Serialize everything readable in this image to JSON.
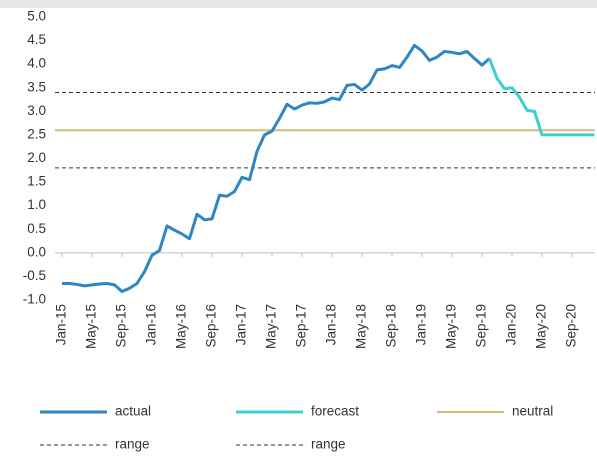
{
  "chart_data": {
    "type": "line",
    "categories": [
      "Jan-15",
      null,
      null,
      null,
      "May-15",
      null,
      null,
      null,
      "Sep-15",
      null,
      null,
      null,
      "Jan-16",
      null,
      null,
      null,
      "May-16",
      null,
      null,
      null,
      "Sep-16",
      null,
      null,
      null,
      "Jan-17",
      null,
      null,
      null,
      "May-17",
      null,
      null,
      null,
      "Sep-17",
      null,
      null,
      null,
      "Jan-18",
      null,
      null,
      null,
      "May-18",
      null,
      null,
      null,
      "Sep-18",
      null,
      null,
      null,
      "Jan-19",
      null,
      null,
      null,
      "May-19",
      null,
      null,
      null,
      "Sep-19",
      null,
      null,
      null,
      "Jan-20",
      null,
      null,
      null,
      "May-20",
      null,
      null,
      null,
      "Sep-20",
      null,
      null,
      null
    ],
    "series": [
      {
        "name": "actual",
        "color": "#2f86c4",
        "values": [
          -0.65,
          -0.65,
          -0.67,
          -0.7,
          -0.68,
          -0.66,
          -0.65,
          -0.68,
          -0.82,
          -0.75,
          -0.65,
          -0.4,
          -0.05,
          0.05,
          0.57,
          0.48,
          0.4,
          0.3,
          0.82,
          0.7,
          0.72,
          1.22,
          1.2,
          1.3,
          1.6,
          1.55,
          2.15,
          2.5,
          2.58,
          2.85,
          3.15,
          3.05,
          3.13,
          3.18,
          3.17,
          3.2,
          3.28,
          3.25,
          3.55,
          3.57,
          3.45,
          3.58,
          3.88,
          3.9,
          3.97,
          3.93,
          4.15,
          4.4,
          4.28,
          4.08,
          4.15,
          4.27,
          4.25,
          4.22,
          4.27,
          4.12,
          3.98,
          4.12,
          null,
          null,
          null,
          null,
          null,
          null,
          null,
          null,
          null,
          null,
          null,
          null,
          null,
          null
        ]
      },
      {
        "name": "forecast",
        "color": "#3dcfcf",
        "values": [
          null,
          null,
          null,
          null,
          null,
          null,
          null,
          null,
          null,
          null,
          null,
          null,
          null,
          null,
          null,
          null,
          null,
          null,
          null,
          null,
          null,
          null,
          null,
          null,
          null,
          null,
          null,
          null,
          null,
          null,
          null,
          null,
          null,
          null,
          null,
          null,
          null,
          null,
          null,
          null,
          null,
          null,
          null,
          null,
          null,
          null,
          null,
          null,
          null,
          null,
          null,
          null,
          null,
          null,
          null,
          null,
          null,
          4.12,
          3.7,
          3.48,
          3.5,
          3.3,
          3.02,
          3.0,
          2.5,
          2.5,
          2.5,
          2.5,
          2.5,
          2.5,
          2.5,
          2.5
        ]
      }
    ],
    "reference_lines": [
      {
        "name": "neutral",
        "value": 2.6,
        "color": "#d2bd7c",
        "dashed": false
      },
      {
        "name": "range",
        "value": 3.4,
        "color": "#333333",
        "dashed": true
      },
      {
        "name": "range",
        "value": 1.8,
        "color": "#333333",
        "dashed": true
      }
    ],
    "ylim": [
      -1,
      5
    ],
    "yticks": [
      {
        "value": -1,
        "label": "-1.0"
      },
      -0.5,
      {
        "value": 0,
        "label": "0.0"
      },
      0.5,
      {
        "value": 1,
        "label": "1.0"
      },
      1.5,
      {
        "value": 2,
        "label": "2.0"
      },
      2.5,
      {
        "value": 3,
        "label": "3.0"
      },
      3.5,
      {
        "value": 4,
        "label": "4.0"
      },
      4.5,
      {
        "value": 5,
        "label": "5.0"
      }
    ],
    "grid": false
  }
}
